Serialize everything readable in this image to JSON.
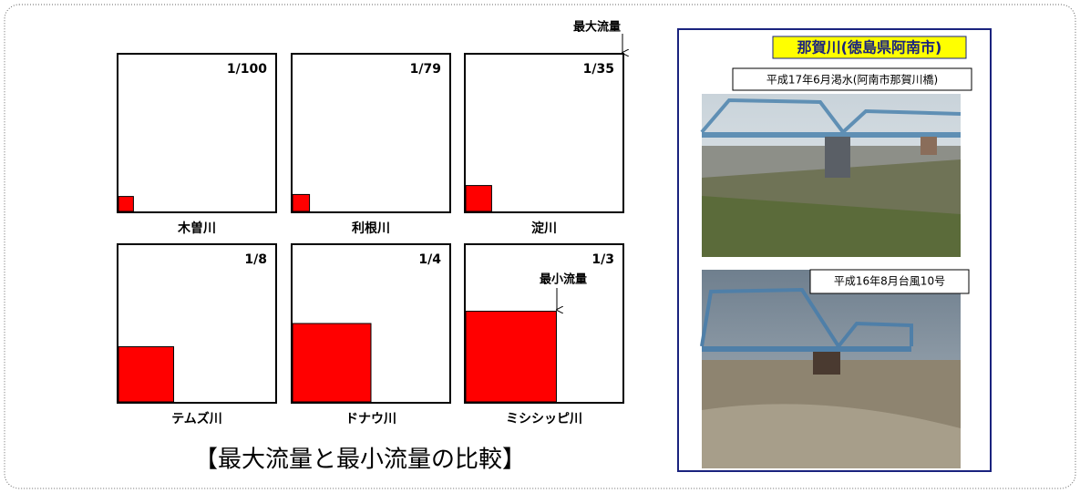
{
  "annotations": {
    "max_flow": "最大流量",
    "min_flow": "最小流量"
  },
  "panels": [
    {
      "ratio": "1/100",
      "river": "木曽川"
    },
    {
      "ratio": "1/79",
      "river": "利根川"
    },
    {
      "ratio": "1/35",
      "river": "淀川"
    },
    {
      "ratio": "1/8",
      "river": "テムズ川"
    },
    {
      "ratio": "1/4",
      "river": "ドナウ川"
    },
    {
      "ratio": "1/3",
      "river": "ミシシッピ川"
    }
  ],
  "caption": "【最大流量と最小流量の比較】",
  "photo_panel": {
    "title": "那賀川(徳島県阿南市)",
    "photos": [
      {
        "caption": "平成17年6月渇水(阿南市那賀川橋)"
      },
      {
        "caption": "平成16年8月台風10号"
      }
    ]
  }
}
